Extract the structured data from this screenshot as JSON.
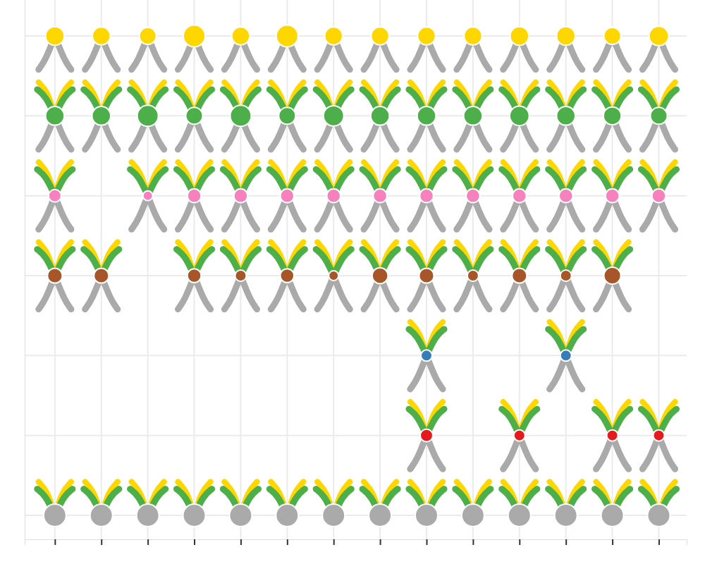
{
  "chart_data": {
    "type": "bubble",
    "x": [
      1,
      2,
      3,
      4,
      5,
      6,
      7,
      8,
      9,
      10,
      11,
      12,
      13,
      14
    ],
    "xlim": [
      0.35,
      14.6
    ],
    "xticks": [
      1,
      2,
      3,
      4,
      5,
      6,
      7,
      8,
      9,
      10,
      11,
      12,
      13,
      14
    ],
    "ylim": [
      0.7,
      7.45
    ],
    "yticks": [
      1,
      2,
      3,
      4,
      5,
      6,
      7
    ],
    "grid": true,
    "tick_labels": false,
    "series": [
      {
        "color": "#ffd700",
        "values": [
          7,
          7,
          7,
          7,
          7,
          7,
          7,
          7,
          7,
          7,
          7,
          7,
          7,
          7
        ],
        "sizes": [
          11,
          10,
          9,
          15,
          10,
          15,
          10,
          10,
          10,
          10,
          11,
          11,
          9,
          12
        ]
      },
      {
        "color": "#4daf4a",
        "values": [
          6,
          6,
          6,
          6,
          6,
          6,
          6,
          6,
          6,
          6,
          6,
          6,
          6,
          6
        ],
        "sizes": [
          11,
          11,
          14,
          9,
          14,
          9,
          13,
          11,
          11,
          11,
          12,
          11,
          10,
          9
        ]
      },
      {
        "color": "#f781bf",
        "values": [
          5,
          null,
          5,
          5,
          5,
          5,
          5,
          5,
          5,
          5,
          5,
          5,
          5,
          5
        ],
        "sizes": [
          5,
          null,
          3,
          6,
          6,
          6,
          6,
          6,
          6,
          6,
          6,
          6,
          6,
          6
        ]
      },
      {
        "color": "#a65628",
        "values": [
          4,
          4,
          null,
          4,
          4,
          4,
          4,
          4,
          4,
          4,
          4,
          4,
          4,
          null
        ],
        "sizes": [
          7,
          7,
          null,
          6,
          4,
          6,
          3,
          8,
          7,
          4,
          7,
          4,
          9,
          null
        ]
      },
      {
        "color": "#377eb8",
        "values": [
          null,
          null,
          null,
          null,
          null,
          null,
          null,
          null,
          3,
          null,
          null,
          3,
          null,
          null
        ],
        "sizes": [
          null,
          null,
          null,
          null,
          null,
          null,
          null,
          null,
          4,
          null,
          null,
          4,
          null,
          null
        ]
      },
      {
        "color": "#e41a1c",
        "values": [
          null,
          null,
          null,
          null,
          null,
          null,
          null,
          null,
          2,
          null,
          2,
          null,
          2,
          2
        ],
        "sizes": [
          null,
          null,
          null,
          null,
          null,
          null,
          null,
          null,
          5,
          null,
          4,
          null,
          4,
          4
        ]
      },
      {
        "color": "#aaaaaa",
        "values": [
          1,
          1,
          1,
          1,
          1,
          1,
          1,
          1,
          1,
          1,
          1,
          1,
          1,
          1
        ],
        "sizes": [
          16,
          16,
          16,
          16,
          16,
          16,
          16,
          16,
          16,
          16,
          16,
          16,
          16,
          16
        ]
      }
    ]
  }
}
